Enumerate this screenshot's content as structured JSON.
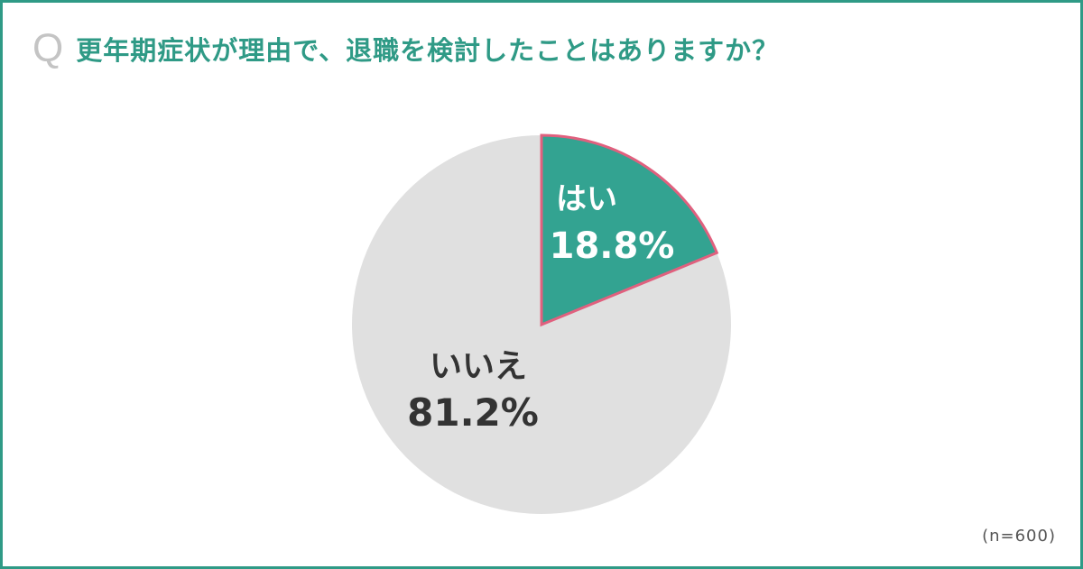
{
  "question": {
    "mark": "Q",
    "text": "更年期症状が理由で、退職を検討したことはありますか？"
  },
  "chart_data": {
    "type": "pie",
    "title": "更年期症状が理由で、退職を検討したことはありますか？",
    "unit": "%",
    "slices": [
      {
        "name": "はい",
        "value": 18.8,
        "value_label": "18.8%",
        "color": "#33a391",
        "stroke": "#e0607e",
        "label_color": "#ffffff"
      },
      {
        "name": "いいえ",
        "value": 81.2,
        "value_label": "81.2%",
        "color": "#e0e0e0",
        "stroke": "none",
        "label_color": "#333333"
      }
    ],
    "start_angle": "12 o'clock",
    "direction": "clockwise",
    "sample_size": "(n=600)"
  },
  "colors": {
    "frame": "#2f9a86",
    "question_text": "#2f9a86",
    "q_mark": "#c4c4c4"
  }
}
